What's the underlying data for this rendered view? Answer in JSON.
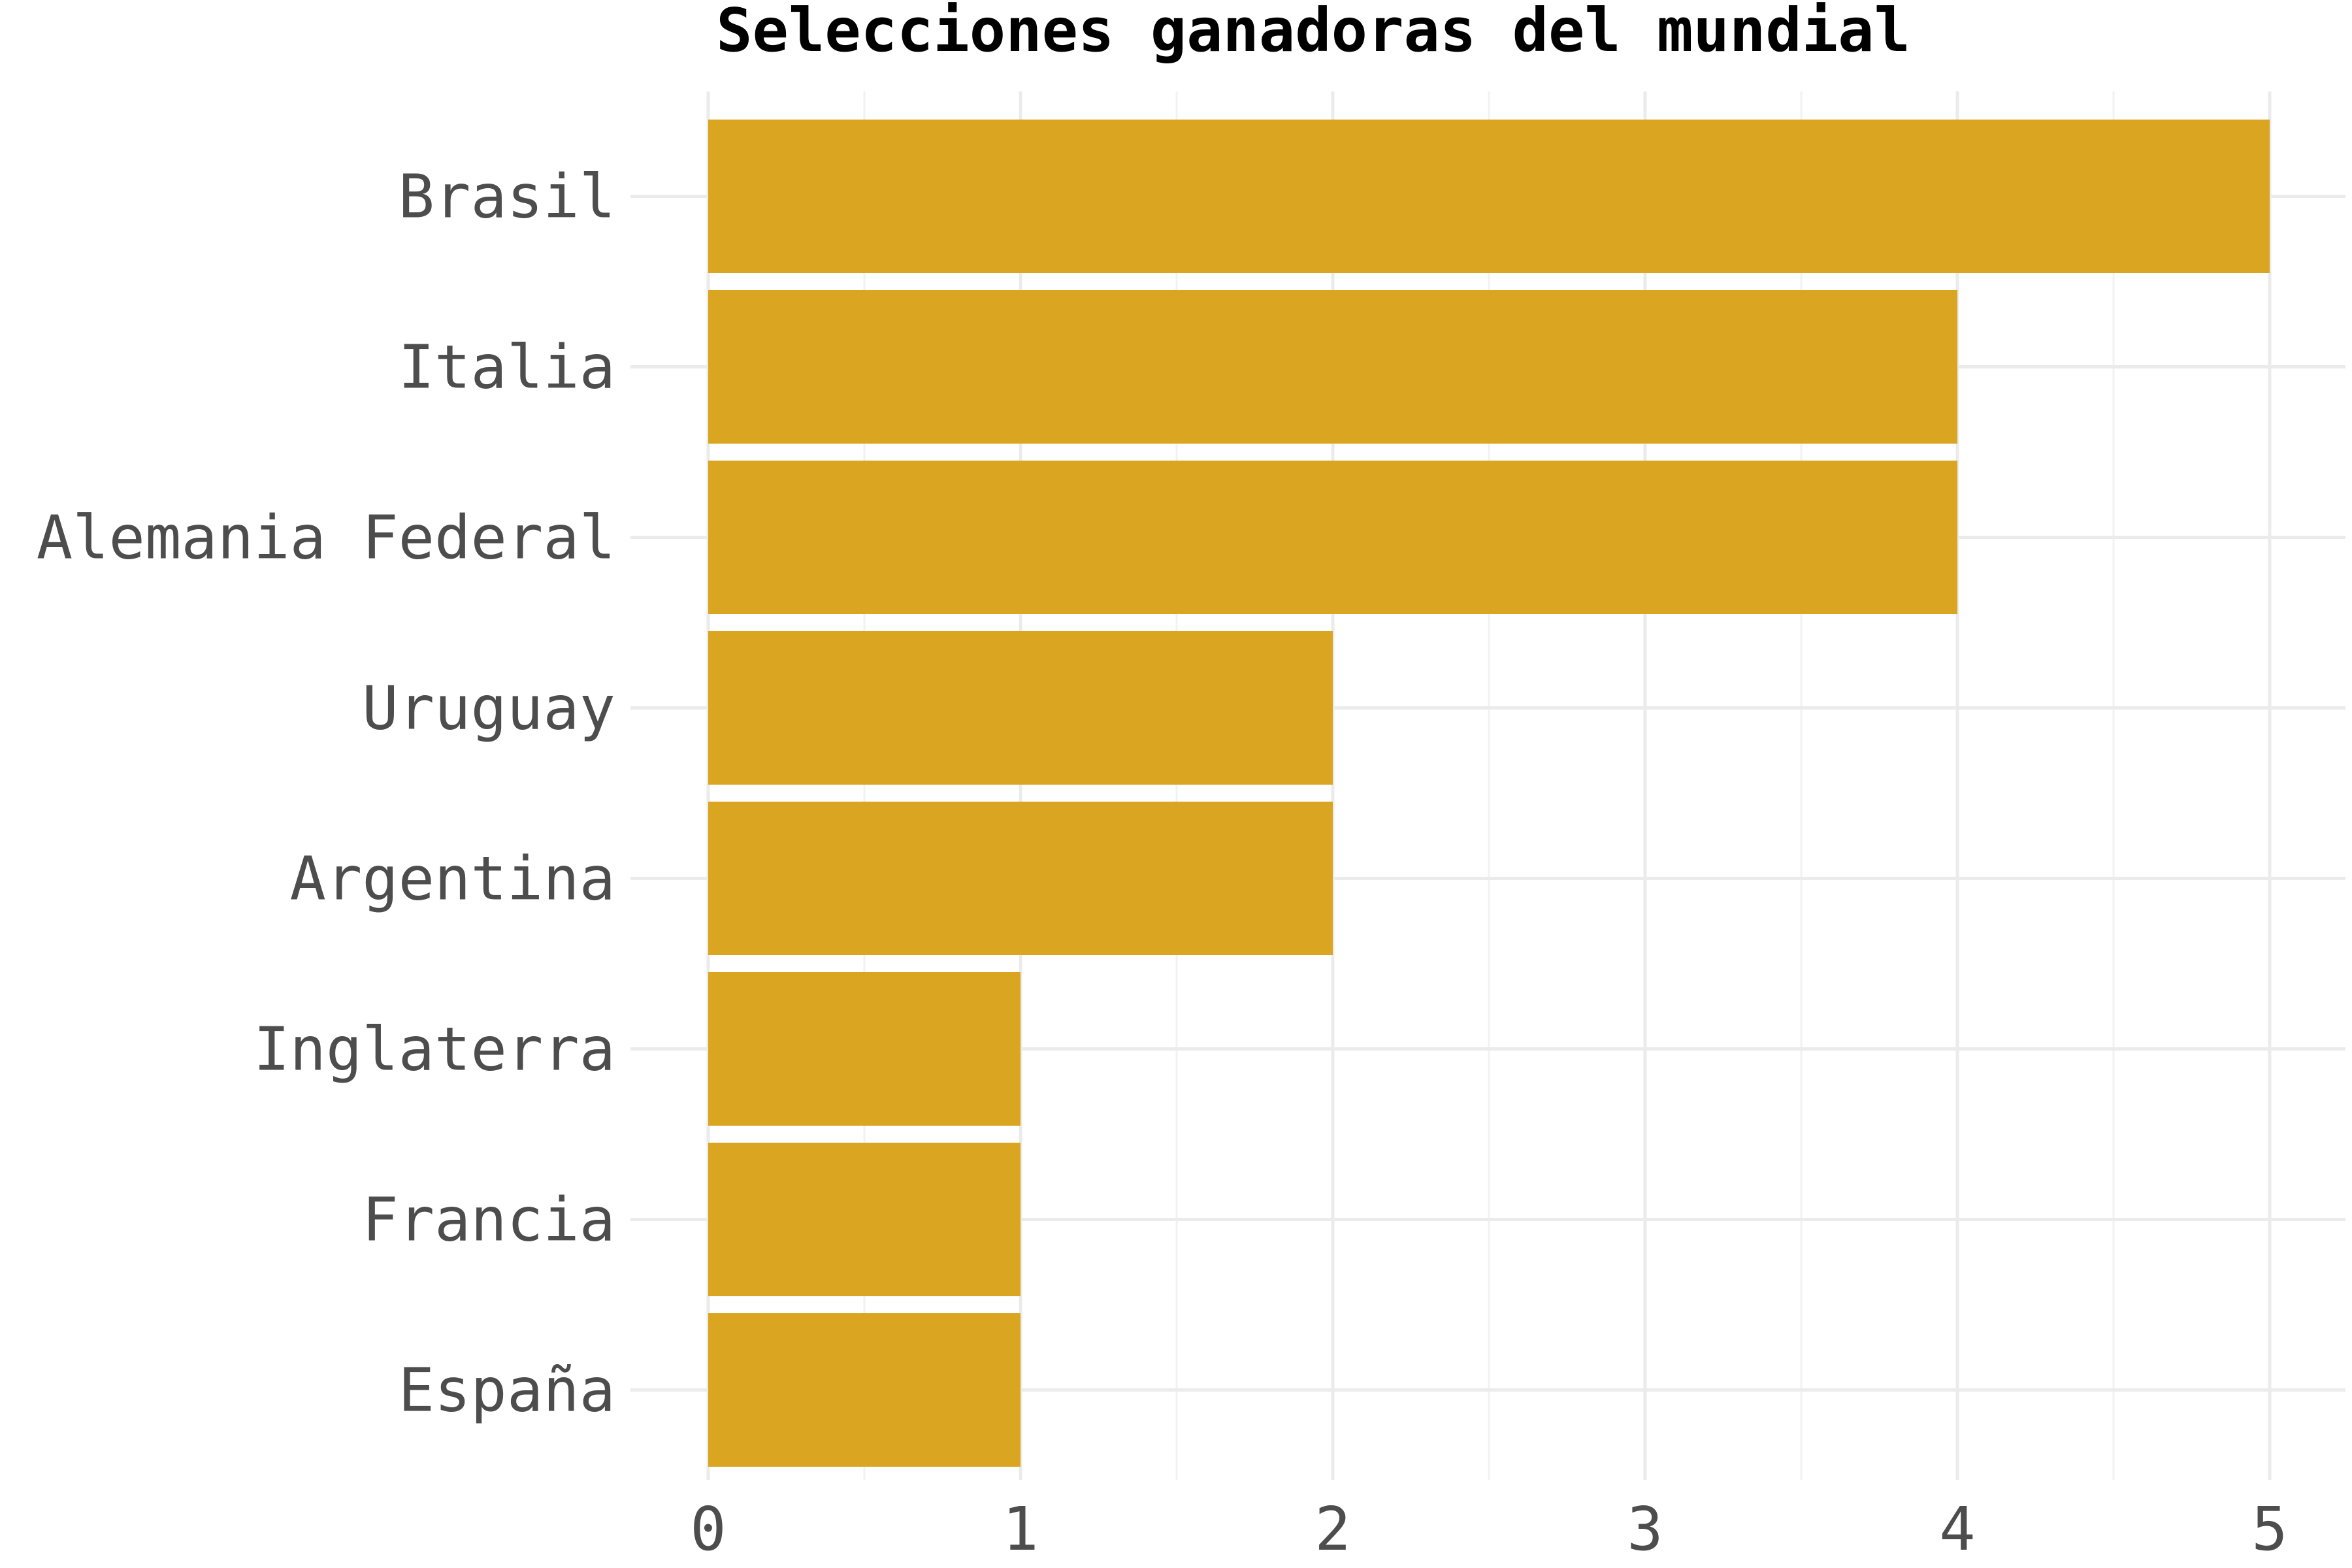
{
  "chart_data": {
    "type": "bar",
    "orientation": "horizontal",
    "title": "Selecciones ganadoras del mundial",
    "xlabel": "",
    "ylabel": "",
    "categories": [
      "Brasil",
      "Italia",
      "Alemania Federal",
      "Uruguay",
      "Argentina",
      "Inglaterra",
      "Francia",
      "España"
    ],
    "values": [
      5,
      4,
      4,
      2,
      2,
      1,
      1,
      1
    ],
    "xlim": [
      0,
      5
    ],
    "xticks": [
      "0",
      "1",
      "2",
      "3",
      "4",
      "5"
    ],
    "grid": true,
    "legend": "none",
    "bar_color": "#DAA520"
  }
}
